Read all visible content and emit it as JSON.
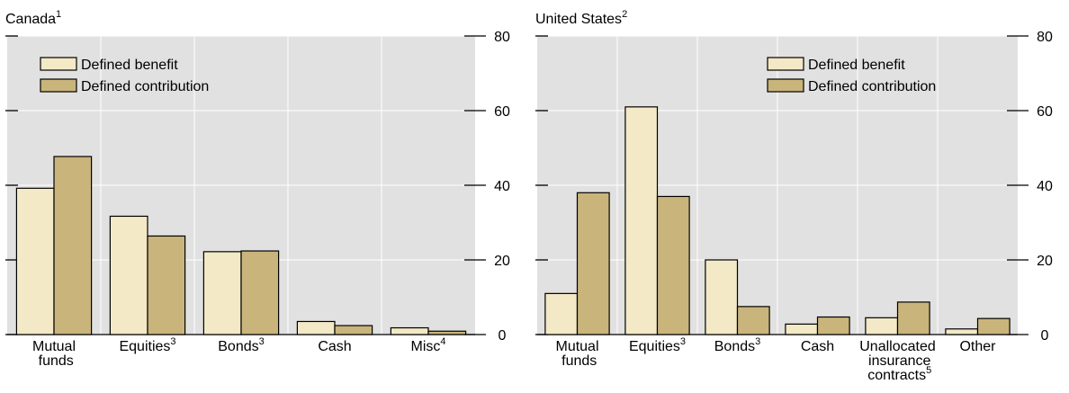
{
  "chart_data": [
    {
      "type": "bar",
      "title": "Canada",
      "title_sup": "1",
      "categories": [
        "Mutual funds",
        "Equities",
        "Bonds",
        "Cash",
        "Misc"
      ],
      "category_sups": [
        null,
        "3",
        "3",
        null,
        "4"
      ],
      "series": [
        {
          "name": "Defined benefit",
          "color": "#f3e9c6",
          "values": [
            39.2,
            31.7,
            22.2,
            3.5,
            1.8
          ]
        },
        {
          "name": "Defined contribution",
          "color": "#c9b47b",
          "values": [
            47.7,
            26.4,
            22.4,
            2.4,
            0.9
          ]
        }
      ],
      "ylim": [
        0,
        80
      ],
      "yticks": [
        0,
        20,
        40,
        60,
        80
      ],
      "grid": true,
      "legend": "upper left"
    },
    {
      "type": "bar",
      "title": "United States",
      "title_sup": "2",
      "categories": [
        "Mutual funds",
        "Equities",
        "Bonds",
        "Cash",
        "Unallocated insurance contracts",
        "Other"
      ],
      "category_sups": [
        null,
        "3",
        "3",
        null,
        "5",
        null
      ],
      "series": [
        {
          "name": "Defined benefit",
          "color": "#f3e9c6",
          "values": [
            11,
            61,
            20,
            2.8,
            4.5,
            1.5
          ]
        },
        {
          "name": "Defined contribution",
          "color": "#c9b47b",
          "values": [
            38,
            37,
            7.5,
            4.7,
            8.7,
            4.3
          ]
        }
      ],
      "ylim": [
        0,
        80
      ],
      "yticks": [
        0,
        20,
        40,
        60,
        80
      ],
      "grid": true,
      "legend": "upper right"
    }
  ]
}
